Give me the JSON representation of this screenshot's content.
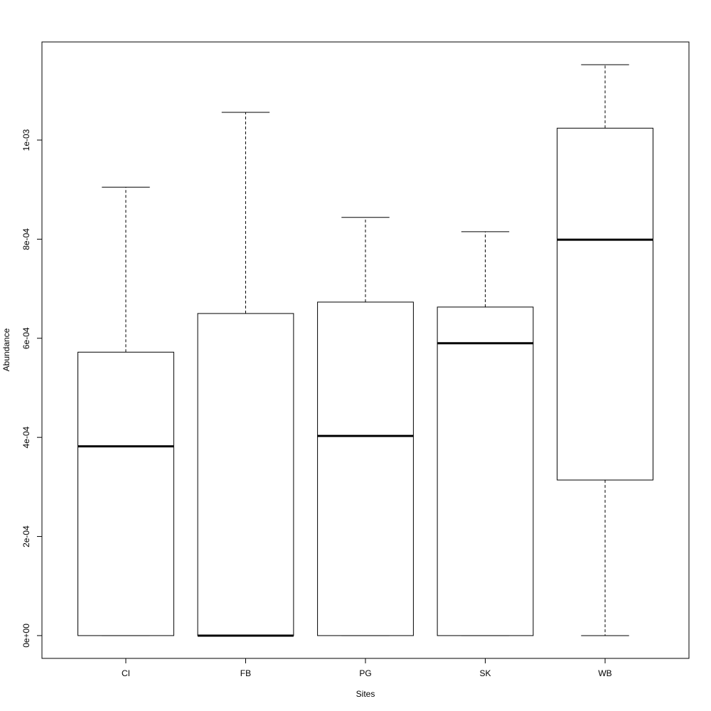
{
  "chart_data": {
    "type": "box",
    "x_label": "Sites",
    "y_label": "Abundance",
    "categories": [
      "CI",
      "FB",
      "PG",
      "SK",
      "WB"
    ],
    "min": [
      0,
      0,
      0,
      0,
      0
    ],
    "q1": [
      0,
      0,
      0,
      0,
      0.000314
    ],
    "median": [
      0.000382,
      0,
      0.000403,
      0.00059,
      0.000799
    ],
    "q3": [
      0.000572,
      0.00065,
      0.000673,
      0.000663,
      0.001024
    ],
    "max": [
      0.000905,
      0.001056,
      0.000844,
      0.000815,
      0.001152
    ],
    "color": "#000000",
    "ylim": [
      -4.6e-05,
      0.001198
    ],
    "yticks": [
      {
        "value": 0,
        "label": "0e+00"
      },
      {
        "value": 0.0002,
        "label": "2e-04"
      },
      {
        "value": 0.0004,
        "label": "4e-04"
      },
      {
        "value": 0.0006,
        "label": "6e-04"
      },
      {
        "value": 0.0008,
        "label": "8e-04"
      },
      {
        "value": 0.001,
        "label": "1e-03"
      }
    ]
  }
}
